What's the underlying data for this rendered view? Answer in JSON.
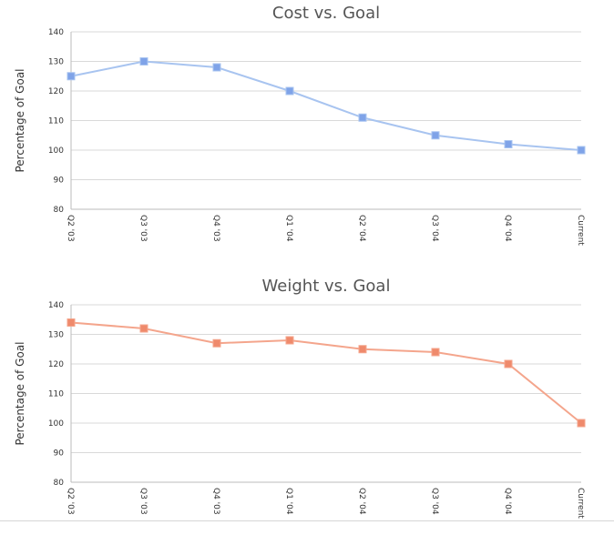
{
  "chart_data": [
    {
      "type": "line",
      "title": "Cost vs. Goal",
      "xlabel": "",
      "ylabel": "Percentage of Goal",
      "categories": [
        "Q2 '03",
        "Q3 '03",
        "Q4 '03",
        "Q1 '04",
        "Q2 '04",
        "Q3 '04",
        "Q4 '04",
        "Current"
      ],
      "series": [
        {
          "values": [
            125,
            130,
            128,
            120,
            111,
            105,
            102,
            100
          ],
          "color": "#a8c4f0",
          "marker_color": "#7fa3e8"
        }
      ],
      "ylim": [
        80,
        140
      ],
      "yticks": [
        80,
        90,
        100,
        110,
        120,
        130,
        140
      ],
      "grid": true,
      "legend": "none"
    },
    {
      "type": "line",
      "title": "Weight vs. Goal",
      "xlabel": "",
      "ylabel": "Percentage of Goal",
      "categories": [
        "Q2 '03",
        "Q3 '03",
        "Q4 '03",
        "Q1 '04",
        "Q2 '04",
        "Q3 '04",
        "Q4 '04",
        "Current"
      ],
      "series": [
        {
          "values": [
            134,
            132,
            127,
            128,
            125,
            124,
            120,
            100
          ],
          "color": "#f4a58c",
          "marker_color": "#ef8a6c"
        }
      ],
      "ylim": [
        80,
        140
      ],
      "yticks": [
        80,
        90,
        100,
        110,
        120,
        130,
        140
      ],
      "grid": true,
      "legend": "none"
    }
  ]
}
